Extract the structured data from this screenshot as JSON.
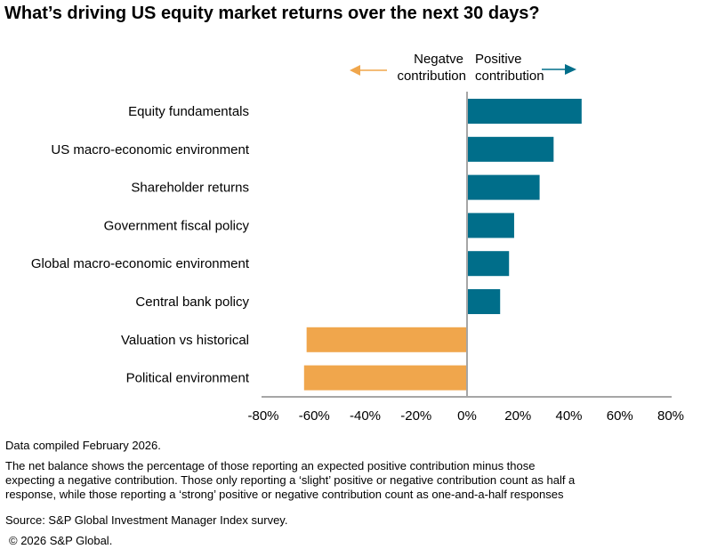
{
  "chart_data": {
    "type": "bar",
    "orientation": "horizontal",
    "title": "What’s driving US equity market returns over the next 30 days?",
    "categories": [
      "Equity fundamentals",
      "US macro-economic environment",
      "Shareholder returns",
      "Government fiscal policy",
      "Global macro-economic environment",
      "Central bank policy",
      "Valuation vs historical",
      "Political environment"
    ],
    "values": [
      45,
      34,
      28.5,
      18.5,
      16.5,
      13,
      -63,
      -64
    ],
    "xlim": [
      -80,
      80
    ],
    "xticks": [
      -80,
      -60,
      -40,
      -20,
      0,
      20,
      40,
      60,
      80
    ],
    "xtick_labels": [
      "-80%",
      "-60%",
      "-40%",
      "-20%",
      "0%",
      "20%",
      "40%",
      "60%",
      "80%"
    ],
    "annotations": {
      "negative": [
        "Negatve",
        "contribution"
      ],
      "positive": [
        "Positive",
        "contribution"
      ]
    },
    "colors": {
      "positive": "#006E8A",
      "negative": "#F0A64C"
    },
    "grid": false
  },
  "notes": {
    "compiled": "Data compiled February 2026.",
    "description": [
      "The net balance shows the percentage of those reporting an expected positive contribution minus those",
      "expecting a negative contribution. Those only reporting a ‘slight’ positive or negative contribution count as half a",
      "response, while those reporting a ‘strong’ positive or negative contribution count as one-and-a-half responses"
    ],
    "source": "Source: S&P Global Investment Manager Index survey.",
    "copyright": "© 2026 S&P Global."
  }
}
